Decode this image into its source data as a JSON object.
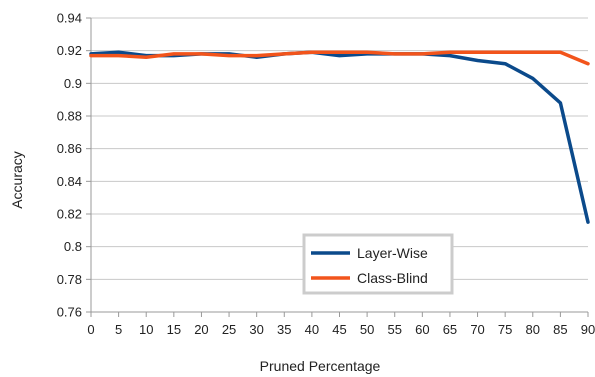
{
  "chart_data": {
    "type": "line",
    "title": "",
    "xlabel": "Pruned Percentage",
    "ylabel": "Accuracy",
    "xlim": [
      0,
      90
    ],
    "ylim": [
      0.76,
      0.94
    ],
    "x": [
      0,
      5,
      10,
      15,
      20,
      25,
      30,
      35,
      40,
      45,
      50,
      55,
      60,
      65,
      70,
      75,
      80,
      85,
      90
    ],
    "x_tick_labels": [
      "0",
      "5",
      "10",
      "15",
      "20",
      "25",
      "30",
      "35",
      "40",
      "45",
      "50",
      "55",
      "60",
      "65",
      "70",
      "75",
      "80",
      "85",
      "90"
    ],
    "y_tick_labels": [
      "0.76",
      "0.78",
      "0.8",
      "0.82",
      "0.84",
      "0.86",
      "0.88",
      "0.9",
      "0.92",
      "0.94"
    ],
    "grid": true,
    "legend_position": "bottom-center",
    "series": [
      {
        "name": "Layer-Wise",
        "color": "#0b4a8b",
        "values": [
          0.918,
          0.919,
          0.917,
          0.917,
          0.918,
          0.918,
          0.916,
          0.918,
          0.919,
          0.917,
          0.918,
          0.918,
          0.918,
          0.917,
          0.914,
          0.912,
          0.903,
          0.888,
          0.815
        ]
      },
      {
        "name": "Class-Blind",
        "color": "#f2541b",
        "values": [
          0.917,
          0.917,
          0.916,
          0.918,
          0.918,
          0.917,
          0.917,
          0.918,
          0.919,
          0.919,
          0.919,
          0.918,
          0.918,
          0.919,
          0.919,
          0.919,
          0.919,
          0.919,
          0.912
        ]
      }
    ]
  }
}
